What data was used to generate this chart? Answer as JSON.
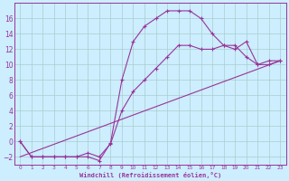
{
  "xlabel": "Windchill (Refroidissement éolien,°C)",
  "bg_color": "#cceeff",
  "line_color": "#993399",
  "grid_color": "#aacccc",
  "xlim": [
    -0.5,
    23.5
  ],
  "ylim": [
    -3,
    18
  ],
  "xticks": [
    0,
    1,
    2,
    3,
    4,
    5,
    6,
    7,
    8,
    9,
    10,
    11,
    12,
    13,
    14,
    15,
    16,
    17,
    18,
    19,
    20,
    21,
    22,
    23
  ],
  "yticks": [
    -2,
    0,
    2,
    4,
    6,
    8,
    10,
    12,
    14,
    16
  ],
  "curve1_x": [
    0,
    1,
    2,
    3,
    4,
    5,
    6,
    7,
    8,
    9,
    10,
    11,
    12,
    13,
    14,
    15,
    16,
    17,
    18,
    19,
    20,
    21,
    22,
    23
  ],
  "curve1_y": [
    0,
    -2,
    -2,
    -2,
    -2,
    -2,
    -2,
    -2.5,
    -0.2,
    8,
    13,
    15,
    16,
    17,
    17,
    17,
    16,
    14,
    12.5,
    12,
    13,
    10,
    10,
    10.5
  ],
  "curve2_x": [
    0,
    1,
    2,
    3,
    4,
    5,
    6,
    7,
    8,
    9,
    10,
    11,
    12,
    13,
    14,
    15,
    16,
    17,
    18,
    19,
    20,
    21,
    22,
    23
  ],
  "curve2_y": [
    0,
    -2,
    -2,
    -2,
    -2,
    -2,
    -1.5,
    -2,
    -0.3,
    4,
    6.5,
    8,
    9.5,
    11,
    12.5,
    12.5,
    12,
    12,
    12.5,
    12.5,
    11,
    10,
    10.5,
    10.5
  ],
  "curve3_x": [
    0,
    23
  ],
  "curve3_y": [
    -2,
    10.5
  ]
}
